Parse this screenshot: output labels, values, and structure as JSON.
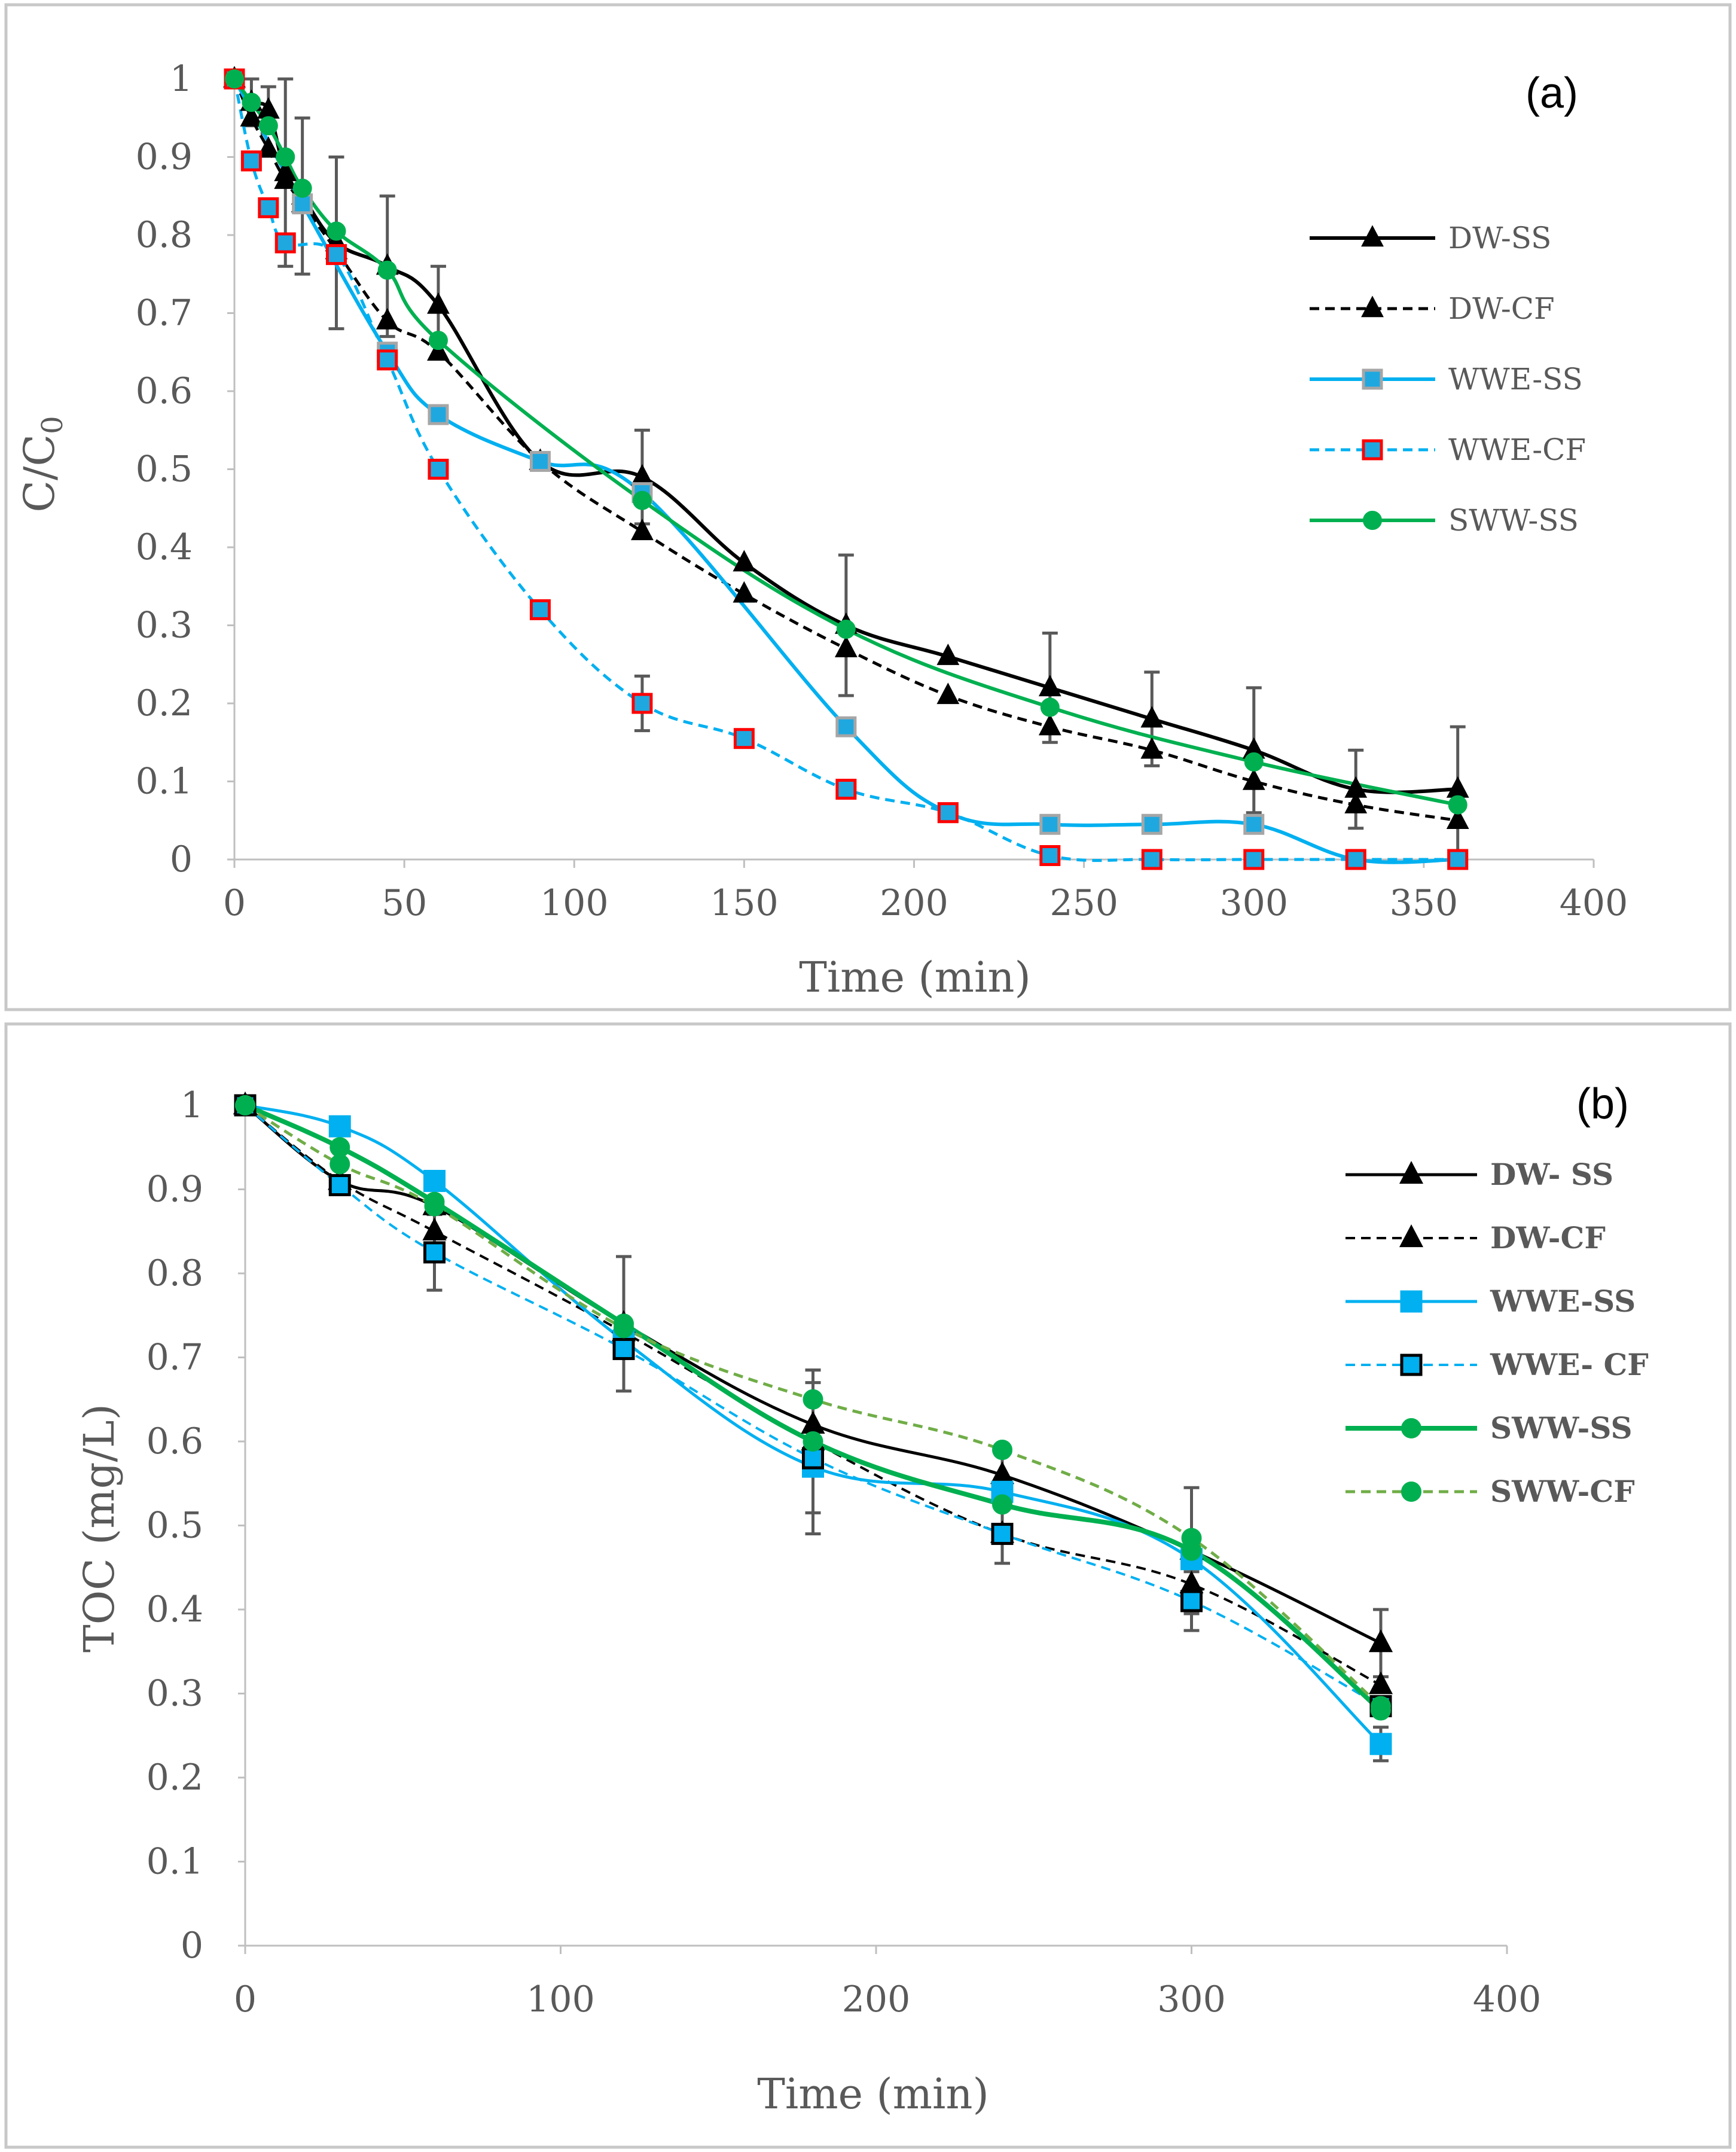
{
  "chart_data": [
    {
      "type": "line",
      "panel_label": "(a)",
      "xlabel": "Time (min)",
      "ylabel_main": "C/C",
      "ylabel_sub": "0",
      "xlim": [
        0,
        400
      ],
      "ylim": [
        0,
        1
      ],
      "xticks": [
        0,
        50,
        100,
        150,
        200,
        250,
        300,
        350,
        400
      ],
      "yticks": [
        0,
        0.1,
        0.2,
        0.3,
        0.4,
        0.5,
        0.6,
        0.7,
        0.8,
        0.9,
        1
      ],
      "ytick_labels": [
        "0",
        "0.1",
        "0.2",
        "0.3",
        "0.4",
        "0.5",
        "0.6",
        "0.7",
        "0.8",
        "0.9",
        "1"
      ],
      "grid": false,
      "legend_position": "right",
      "series": [
        {
          "name": "DW-SS",
          "color": "#000000",
          "dash": false,
          "marker": "triangle",
          "marker_fill": "#000000",
          "marker_edge": "#000000",
          "x": [
            0,
            5,
            10,
            15,
            20,
            30,
            45,
            60,
            90,
            120,
            150,
            180,
            210,
            240,
            270,
            300,
            330,
            360
          ],
          "y": [
            1,
            0.97,
            0.96,
            0.88,
            0.85,
            0.79,
            0.76,
            0.71,
            0.51,
            0.49,
            0.38,
            0.3,
            0.26,
            0.22,
            0.18,
            0.14,
            0.09,
            0.09
          ],
          "err": [
            0,
            0.03,
            0.03,
            0.12,
            0.1,
            0.11,
            0.09,
            0.05,
            0,
            0.06,
            0,
            0.09,
            0,
            0.07,
            0.06,
            0.08,
            0.05,
            0.08
          ]
        },
        {
          "name": "DW-CF",
          "color": "#000000",
          "dash": true,
          "marker": "triangle",
          "marker_fill": "#000000",
          "marker_edge": "#000000",
          "x": [
            0,
            5,
            10,
            15,
            20,
            30,
            45,
            60,
            90,
            120,
            150,
            180,
            210,
            240,
            270,
            300,
            330,
            360
          ],
          "y": [
            1,
            0.95,
            0.91,
            0.87,
            0.84,
            0.78,
            0.69,
            0.65,
            0.51,
            0.42,
            0.34,
            0.27,
            0.21,
            0.17,
            0.14,
            0.1,
            0.07,
            0.05
          ],
          "err": []
        },
        {
          "name": "WWE-SS",
          "color": "#00b0f0",
          "dash": false,
          "marker": "square",
          "marker_fill": "#1fa8e0",
          "marker_edge": "#a6a6a6",
          "x": [
            0,
            20,
            45,
            60,
            90,
            120,
            180,
            210,
            240,
            270,
            300,
            330,
            360
          ],
          "y": [
            1,
            0.84,
            0.65,
            0.57,
            0.51,
            0.47,
            0.17,
            0.06,
            0.045,
            0.045,
            0.045,
            0,
            0
          ],
          "err": []
        },
        {
          "name": "WWE-CF",
          "color": "#00b0f0",
          "dash": true,
          "marker": "square",
          "marker_fill": "#1fa8e0",
          "marker_edge": "#ff0000",
          "x": [
            0,
            5,
            10,
            15,
            30,
            45,
            60,
            90,
            120,
            150,
            180,
            210,
            240,
            270,
            300,
            330,
            360
          ],
          "y": [
            1,
            0.895,
            0.835,
            0.79,
            0.775,
            0.64,
            0.5,
            0.32,
            0.2,
            0.155,
            0.09,
            0.06,
            0.005,
            0,
            0,
            0,
            0
          ],
          "err": [
            0,
            0,
            0,
            0,
            0,
            0,
            0,
            0,
            0.035,
            0,
            0,
            0,
            0,
            0,
            0,
            0,
            0
          ]
        },
        {
          "name": "SWW-SS",
          "color": "#00b050",
          "dash": false,
          "marker": "circle",
          "marker_fill": "#00b050",
          "marker_edge": "#00b050",
          "x": [
            0,
            5,
            10,
            15,
            20,
            30,
            45,
            60,
            120,
            180,
            240,
            300,
            360
          ],
          "y": [
            1,
            0.97,
            0.94,
            0.9,
            0.86,
            0.805,
            0.755,
            0.665,
            0.46,
            0.295,
            0.195,
            0.125,
            0.07
          ],
          "err": []
        }
      ]
    },
    {
      "type": "line",
      "panel_label": "(b)",
      "xlabel": "Time (min)",
      "ylabel": "TOC (mg/L)",
      "xlim": [
        0,
        400
      ],
      "ylim": [
        0,
        1
      ],
      "xticks": [
        0,
        100,
        200,
        300,
        400
      ],
      "yticks": [
        0,
        0.1,
        0.2,
        0.3,
        0.4,
        0.5,
        0.6,
        0.7,
        0.8,
        0.9,
        1
      ],
      "ytick_labels": [
        "0",
        "0.1",
        "0.2",
        "0.3",
        "0.4",
        "0.5",
        "0.6",
        "0.7",
        "0.8",
        "0.9",
        "1"
      ],
      "grid": false,
      "legend_position": "top-right",
      "series": [
        {
          "name": "DW- SS",
          "color": "#000000",
          "dash": false,
          "width": 5,
          "marker": "triangle",
          "marker_fill": "#000000",
          "marker_edge": "#000000",
          "x": [
            0,
            30,
            60,
            120,
            180,
            240,
            300,
            360
          ],
          "y": [
            1,
            0.91,
            0.88,
            0.74,
            0.62,
            0.56,
            0.47,
            0.36
          ],
          "err": [
            0,
            0,
            0,
            0,
            0,
            0,
            0,
            0.04
          ]
        },
        {
          "name": "DW-CF",
          "color": "#000000",
          "dash": true,
          "width": 4,
          "marker": "triangle",
          "marker_fill": "#000000",
          "marker_edge": "#000000",
          "x": [
            0,
            30,
            60,
            120,
            180,
            240,
            300,
            360
          ],
          "y": [
            1,
            0.91,
            0.85,
            0.73,
            0.6,
            0.49,
            0.43,
            0.31
          ],
          "err": [
            0,
            0,
            0,
            0,
            0,
            0,
            0,
            0
          ]
        },
        {
          "name": "WWE-SS",
          "color": "#00b0f0",
          "dash": false,
          "width": 5,
          "marker": "square",
          "marker_fill": "#00b0f0",
          "marker_edge": "#00b0f0",
          "x": [
            0,
            30,
            60,
            120,
            180,
            240,
            300,
            360
          ],
          "y": [
            1,
            0.975,
            0.91,
            0.72,
            0.57,
            0.54,
            0.46,
            0.24
          ],
          "err": [
            0,
            0.01,
            0,
            0,
            0,
            0,
            0,
            0.02
          ]
        },
        {
          "name": "WWE- CF",
          "color": "#00b0f0",
          "dash": true,
          "width": 4,
          "marker": "square",
          "marker_fill": "#00b0f0",
          "marker_edge": "#000000",
          "x": [
            0,
            30,
            60,
            120,
            180,
            240,
            300,
            360
          ],
          "y": [
            1,
            0.905,
            0.825,
            0.71,
            0.58,
            0.49,
            0.41,
            0.285
          ],
          "err": [
            0,
            0,
            0.045,
            0,
            0.09,
            0,
            0.035,
            0
          ]
        },
        {
          "name": "SWW-SS",
          "color": "#00b050",
          "dash": false,
          "width": 8,
          "marker": "circle",
          "marker_fill": "#00b050",
          "marker_edge": "#00b050",
          "x": [
            0,
            30,
            60,
            120,
            180,
            240,
            300,
            360
          ],
          "y": [
            1,
            0.95,
            0.885,
            0.74,
            0.6,
            0.525,
            0.47,
            0.28
          ],
          "err": [
            0,
            0,
            0,
            0.08,
            0.085,
            0.07,
            0.075,
            0
          ]
        },
        {
          "name": "SWW-CF",
          "color": "#70ad47",
          "dash": true,
          "width": 5,
          "marker": "circle",
          "marker_fill": "#00b050",
          "marker_edge": "#00b050",
          "x": [
            0,
            30,
            60,
            120,
            180,
            240,
            300,
            360
          ],
          "y": [
            1,
            0.93,
            0.88,
            0.735,
            0.65,
            0.59,
            0.485,
            0.285
          ],
          "err": [
            0,
            0,
            0,
            0,
            0.035,
            0,
            0,
            0
          ]
        }
      ]
    }
  ]
}
